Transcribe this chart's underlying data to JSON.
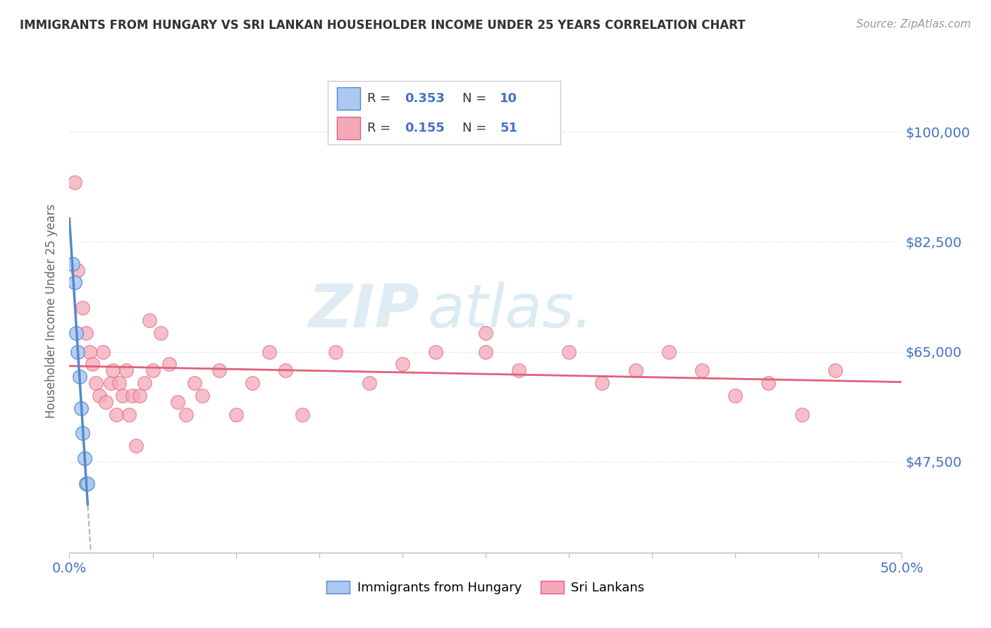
{
  "title": "IMMIGRANTS FROM HUNGARY VS SRI LANKAN HOUSEHOLDER INCOME UNDER 25 YEARS CORRELATION CHART",
  "source": "Source: ZipAtlas.com",
  "ylabel": "Householder Income Under 25 years",
  "xlim": [
    0.0,
    0.5
  ],
  "ylim": [
    33000,
    110000
  ],
  "x_ticks": [
    0.0,
    0.05,
    0.1,
    0.15,
    0.2,
    0.25,
    0.3,
    0.35,
    0.4,
    0.45,
    0.5
  ],
  "y_tick_labels": [
    "$47,500",
    "$65,000",
    "$82,500",
    "$100,000"
  ],
  "y_ticks": [
    47500,
    65000,
    82500,
    100000
  ],
  "hungary_color": "#aac8f0",
  "sri_lanka_color": "#f4a8b8",
  "hungary_line_color": "#5588cc",
  "sri_lanka_line_color": "#e0607a",
  "hungary_R": 0.353,
  "hungary_N": 10,
  "sri_lanka_R": 0.155,
  "sri_lanka_N": 51,
  "legend_label_hungary": "Immigrants from Hungary",
  "legend_label_sri_lanka": "Sri Lankans",
  "hungary_x": [
    0.002,
    0.003,
    0.004,
    0.005,
    0.006,
    0.007,
    0.008,
    0.009,
    0.01,
    0.011
  ],
  "hungary_y": [
    79000,
    76000,
    68000,
    65000,
    61000,
    56000,
    52000,
    48000,
    44000,
    44000
  ],
  "sri_lanka_x": [
    0.003,
    0.005,
    0.008,
    0.01,
    0.012,
    0.014,
    0.016,
    0.018,
    0.02,
    0.022,
    0.025,
    0.026,
    0.028,
    0.03,
    0.032,
    0.034,
    0.036,
    0.038,
    0.04,
    0.042,
    0.045,
    0.048,
    0.05,
    0.055,
    0.06,
    0.065,
    0.07,
    0.075,
    0.08,
    0.09,
    0.1,
    0.11,
    0.12,
    0.13,
    0.14,
    0.16,
    0.18,
    0.2,
    0.22,
    0.25,
    0.27,
    0.3,
    0.32,
    0.34,
    0.36,
    0.38,
    0.4,
    0.42,
    0.44,
    0.46,
    0.25
  ],
  "sri_lanka_y": [
    92000,
    78000,
    72000,
    68000,
    65000,
    63000,
    60000,
    58000,
    65000,
    57000,
    60000,
    62000,
    55000,
    60000,
    58000,
    62000,
    55000,
    58000,
    50000,
    58000,
    60000,
    70000,
    62000,
    68000,
    63000,
    57000,
    55000,
    60000,
    58000,
    62000,
    55000,
    60000,
    65000,
    62000,
    55000,
    65000,
    60000,
    63000,
    65000,
    68000,
    62000,
    65000,
    60000,
    62000,
    65000,
    62000,
    58000,
    60000,
    55000,
    62000,
    65000
  ],
  "background_color": "#ffffff",
  "grid_color": "#e8e8e8",
  "title_color": "#333333",
  "tick_color": "#4472c4",
  "blue_color": "#4472c4",
  "watermark_zip": "ZIP",
  "watermark_atlas": "atlas."
}
